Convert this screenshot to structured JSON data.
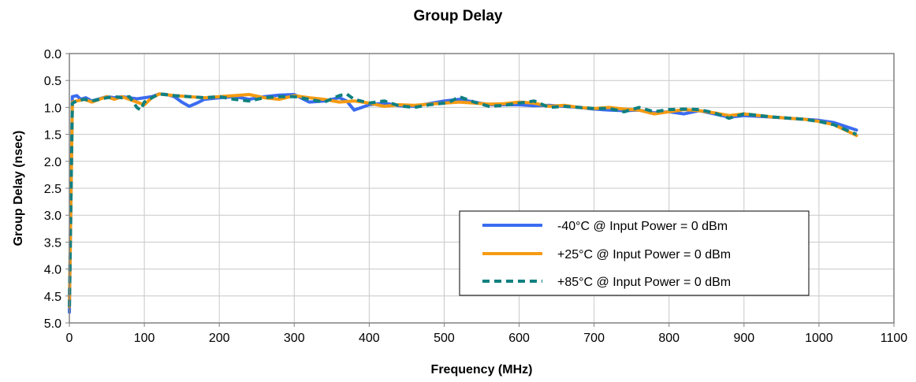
{
  "chart_data": {
    "type": "line",
    "title": "Group Delay",
    "xlabel": "Frequency (MHz)",
    "ylabel": "Group Delay (nsec)",
    "xlim": [
      0,
      1100
    ],
    "ylim": [
      0,
      5.0
    ],
    "y_inverted": true,
    "x_ticks": [
      "0",
      "100",
      "200",
      "300",
      "400",
      "500",
      "600",
      "700",
      "800",
      "900",
      "1000",
      "1100"
    ],
    "y_ticks": [
      "0.0",
      "0.5",
      "1.0",
      "1.5",
      "2.0",
      "2.5",
      "3.0",
      "3.5",
      "4.0",
      "4.5",
      "5.0"
    ],
    "grid": true,
    "legend_position": "lower-right",
    "series": [
      {
        "name": "-40°C @  Input Power = 0 dBm",
        "color": "#3b6cf0",
        "style": "solid",
        "x": [
          0,
          4,
          10,
          15,
          22,
          30,
          40,
          50,
          60,
          70,
          80,
          90,
          100,
          110,
          120,
          130,
          140,
          150,
          160,
          170,
          180,
          200,
          220,
          240,
          260,
          280,
          300,
          320,
          340,
          360,
          370,
          380,
          390,
          400,
          420,
          440,
          460,
          480,
          500,
          520,
          540,
          560,
          580,
          600,
          620,
          640,
          660,
          680,
          700,
          720,
          740,
          760,
          780,
          800,
          820,
          840,
          860,
          880,
          900,
          940,
          980,
          1000,
          1020,
          1050
        ],
        "y": [
          4.8,
          0.8,
          0.78,
          0.85,
          0.82,
          0.88,
          0.84,
          0.8,
          0.82,
          0.8,
          0.82,
          0.84,
          0.82,
          0.8,
          0.75,
          0.76,
          0.8,
          0.9,
          0.98,
          0.92,
          0.85,
          0.82,
          0.8,
          0.85,
          0.8,
          0.77,
          0.76,
          0.9,
          0.88,
          0.82,
          0.88,
          1.05,
          1.0,
          0.95,
          0.92,
          0.97,
          0.98,
          0.93,
          0.88,
          0.85,
          0.9,
          0.95,
          0.95,
          0.95,
          0.97,
          0.96,
          0.98,
          1.0,
          1.03,
          1.05,
          1.06,
          1.05,
          1.1,
          1.08,
          1.12,
          1.06,
          1.12,
          1.18,
          1.15,
          1.18,
          1.22,
          1.24,
          1.28,
          1.42
        ]
      },
      {
        "name": "+25°C @  Input Power = 0 dBm",
        "color": "#f59b12",
        "style": "solid",
        "x": [
          0,
          4,
          10,
          20,
          30,
          40,
          50,
          60,
          70,
          80,
          90,
          100,
          110,
          120,
          140,
          160,
          180,
          200,
          220,
          240,
          260,
          280,
          300,
          320,
          340,
          360,
          380,
          400,
          420,
          440,
          460,
          480,
          500,
          520,
          540,
          560,
          580,
          600,
          620,
          640,
          660,
          680,
          700,
          720,
          740,
          760,
          780,
          800,
          820,
          840,
          860,
          880,
          900,
          940,
          980,
          1000,
          1020,
          1050
        ],
        "y": [
          4.7,
          0.9,
          0.88,
          0.85,
          0.9,
          0.85,
          0.8,
          0.85,
          0.8,
          0.85,
          0.9,
          0.95,
          0.82,
          0.75,
          0.78,
          0.8,
          0.82,
          0.8,
          0.78,
          0.76,
          0.82,
          0.85,
          0.78,
          0.82,
          0.85,
          0.9,
          0.88,
          0.92,
          0.98,
          0.95,
          0.96,
          0.94,
          0.92,
          0.9,
          0.92,
          0.94,
          0.93,
          0.9,
          0.92,
          0.98,
          0.96,
          1.0,
          1.02,
          1.0,
          1.03,
          1.05,
          1.12,
          1.08,
          1.04,
          1.06,
          1.1,
          1.15,
          1.12,
          1.18,
          1.22,
          1.26,
          1.32,
          1.52
        ]
      },
      {
        "name": "+85°C @  Input Power = 0 dBm",
        "color": "#0f8080",
        "style": "dashed",
        "x": [
          0,
          4,
          10,
          20,
          30,
          40,
          50,
          60,
          70,
          80,
          90,
          95,
          100,
          110,
          120,
          140,
          160,
          180,
          200,
          220,
          240,
          260,
          280,
          300,
          320,
          340,
          360,
          370,
          380,
          400,
          420,
          440,
          460,
          480,
          500,
          510,
          520,
          530,
          540,
          560,
          580,
          600,
          620,
          640,
          660,
          680,
          700,
          720,
          740,
          760,
          780,
          800,
          820,
          840,
          860,
          880,
          900,
          940,
          980,
          1000,
          1020,
          1050
        ],
        "y": [
          4.7,
          0.92,
          0.88,
          0.85,
          0.88,
          0.85,
          0.82,
          0.8,
          0.82,
          0.8,
          1.0,
          1.05,
          0.9,
          0.82,
          0.75,
          0.78,
          0.8,
          0.82,
          0.8,
          0.85,
          0.88,
          0.82,
          0.8,
          0.8,
          0.85,
          0.9,
          0.78,
          0.75,
          0.85,
          0.92,
          0.88,
          0.97,
          1.0,
          0.95,
          0.92,
          0.88,
          0.8,
          0.85,
          0.9,
          0.98,
          0.96,
          0.92,
          0.88,
          1.0,
          0.98,
          1.0,
          1.02,
          1.02,
          1.08,
          1.0,
          1.08,
          1.04,
          1.03,
          1.04,
          1.1,
          1.2,
          1.12,
          1.18,
          1.22,
          1.26,
          1.32,
          1.5
        ]
      }
    ]
  }
}
